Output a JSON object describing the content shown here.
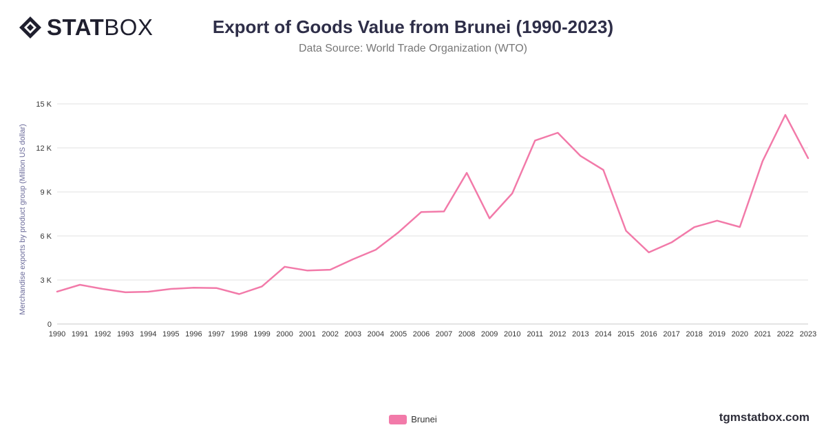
{
  "brand": {
    "name_bold": "STAT",
    "name_light": "BOX"
  },
  "header": {
    "title": "Export of Goods Value from Brunei (1990-2023)",
    "subtitle": "Data Source: World Trade Organization (WTO)"
  },
  "footer": {
    "site": "tgmstatbox.com"
  },
  "colors": {
    "series": "#f27aa9",
    "grid": "#e2e2e2",
    "axis_text": "#333333",
    "ylabel": "#6b6b9a"
  },
  "chart_data": {
    "type": "line",
    "ylabel": "Merchandise exports by product group (Million US dollar)",
    "xlabel": "",
    "ylim": [
      0,
      15000
    ],
    "yticks": [
      0,
      3000,
      6000,
      9000,
      12000,
      15000
    ],
    "ytick_labels": [
      "0",
      "3 K",
      "6 K",
      "9 K",
      "12 K",
      "15 K"
    ],
    "grid": true,
    "legend_position": "bottom-center",
    "x": [
      "1990",
      "1991",
      "1992",
      "1993",
      "1994",
      "1995",
      "1996",
      "1997",
      "1998",
      "1999",
      "2000",
      "2001",
      "2002",
      "2003",
      "2004",
      "2005",
      "2006",
      "2007",
      "2008",
      "2009",
      "2010",
      "2011",
      "2012",
      "2013",
      "2014",
      "2015",
      "2016",
      "2017",
      "2018",
      "2019",
      "2020",
      "2021",
      "2022",
      "2023"
    ],
    "series": [
      {
        "name": "Brunei",
        "values": [
          2210,
          2670,
          2390,
          2160,
          2200,
          2390,
          2470,
          2450,
          2040,
          2560,
          3900,
          3640,
          3700,
          4410,
          5060,
          6250,
          7630,
          7670,
          10300,
          7200,
          8900,
          12500,
          13030,
          11450,
          10500,
          6350,
          4880,
          5560,
          6600,
          7040,
          6610,
          11100,
          14250,
          11300
        ]
      }
    ]
  }
}
